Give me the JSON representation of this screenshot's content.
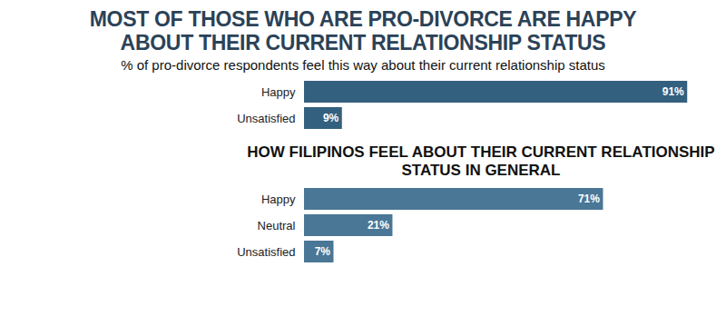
{
  "chart_data": [
    {
      "type": "bar",
      "title": "MOST OF THOSE WHO ARE PRO-DIVORCE ARE HAPPY ABOUT THEIR CURRENT RELATIONSHIP STATUS",
      "subtitle": "% of pro-divorce respondents feel this way about their current relationship status",
      "orientation": "horizontal",
      "categories": [
        "Happy",
        "Unsatisfied"
      ],
      "values": [
        91,
        9
      ],
      "value_labels": [
        "91%",
        "9%"
      ],
      "data_labels": true,
      "color": "#34607f",
      "xlim": [
        0,
        100
      ],
      "tick_labels": "y",
      "grid": false
    },
    {
      "type": "bar",
      "title": "HOW FILIPINOS FEEL ABOUT THEIR CURRENT RELATIONSHIP STATUS IN GENERAL",
      "orientation": "horizontal",
      "categories": [
        "Happy",
        "Neutral",
        "Unsatisfied"
      ],
      "values": [
        71,
        21,
        7
      ],
      "value_labels": [
        "71%",
        "21%",
        "7%"
      ],
      "data_labels": true,
      "color": "#4a7796",
      "xlim": [
        0,
        100
      ],
      "tick_labels": "y",
      "grid": false
    }
  ]
}
